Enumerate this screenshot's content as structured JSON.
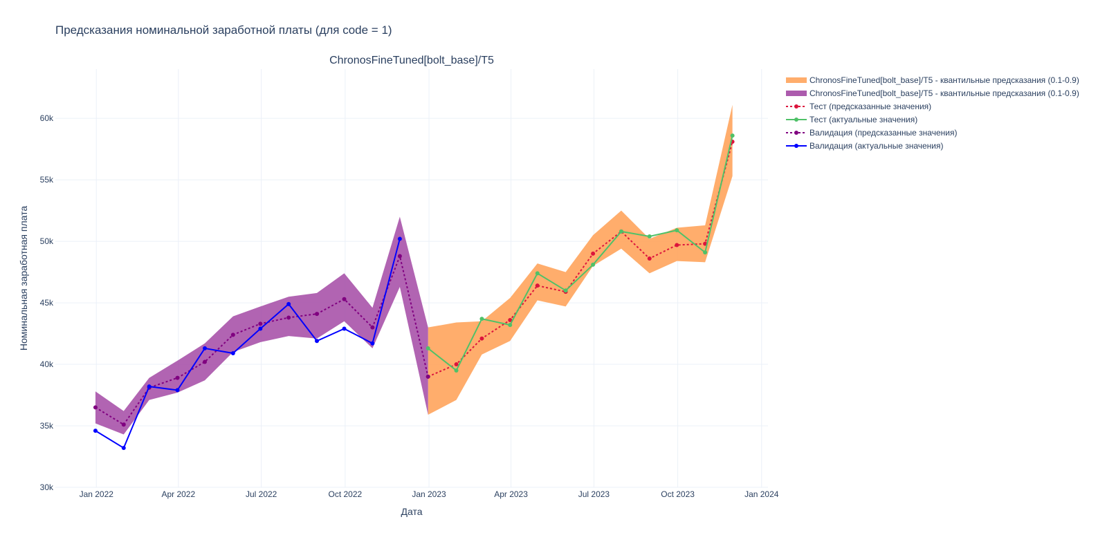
{
  "title": "Предсказания номинальной заработной платы (для code = 1)",
  "chart_data": {
    "type": "line",
    "subplot_title": "ChronosFineTuned[bolt_base]/T5",
    "xlabel": "Дата",
    "ylabel": "Номинальная заработная плата",
    "xlim": [
      "2021-11-17",
      "2024-01-08"
    ],
    "ylim": [
      30000,
      64000
    ],
    "x_ticks": [
      {
        "date": "2022-01-01",
        "label": "Jan 2022"
      },
      {
        "date": "2022-04-01",
        "label": "Apr 2022"
      },
      {
        "date": "2022-07-01",
        "label": "Jul 2022"
      },
      {
        "date": "2022-10-01",
        "label": "Oct 2022"
      },
      {
        "date": "2023-01-01",
        "label": "Jan 2023"
      },
      {
        "date": "2023-04-01",
        "label": "Apr 2023"
      },
      {
        "date": "2023-07-01",
        "label": "Jul 2023"
      },
      {
        "date": "2023-10-01",
        "label": "Oct 2023"
      },
      {
        "date": "2024-01-01",
        "label": "Jan 2024"
      }
    ],
    "y_ticks": [
      {
        "value": 30000,
        "label": "30k"
      },
      {
        "value": 35000,
        "label": "35k"
      },
      {
        "value": 40000,
        "label": "40k"
      },
      {
        "value": 45000,
        "label": "45k"
      },
      {
        "value": 50000,
        "label": "50k"
      },
      {
        "value": 55000,
        "label": "55k"
      },
      {
        "value": 60000,
        "label": "60k"
      }
    ],
    "grid": true,
    "legend_position": "right",
    "bands": [
      {
        "name": "ChronosFineTuned[bolt_base]/T5 - квантильные предсказания (0.1-0.9)",
        "color": "#ffa45c",
        "opacity": 0.9,
        "x": [
          "2022-12-31",
          "2023-01-31",
          "2023-02-28",
          "2023-03-31",
          "2023-04-30",
          "2023-05-31",
          "2023-06-30",
          "2023-07-31",
          "2023-08-31",
          "2023-09-30",
          "2023-10-31",
          "2023-11-30"
        ],
        "lower": [
          35900,
          37100,
          40800,
          41900,
          45200,
          44700,
          48000,
          49400,
          47400,
          48400,
          48300,
          55300
        ],
        "upper": [
          43000,
          43400,
          43500,
          45400,
          48200,
          47500,
          50500,
          52500,
          50200,
          51100,
          51300,
          61100
        ]
      },
      {
        "name": "ChronosFineTuned[bolt_base]/T5 - квантильные предсказания (0.1-0.9)",
        "color": "#a349a4",
        "opacity": 0.85,
        "x": [
          "2021-12-31",
          "2022-01-31",
          "2022-02-28",
          "2022-03-31",
          "2022-04-30",
          "2022-05-31",
          "2022-06-30",
          "2022-07-31",
          "2022-08-31",
          "2022-09-30",
          "2022-10-31",
          "2022-11-30",
          "2022-12-31"
        ],
        "lower": [
          35200,
          34300,
          37100,
          37700,
          38700,
          41000,
          41800,
          42300,
          42100,
          43500,
          41300,
          46300,
          35900
        ],
        "upper": [
          37800,
          36200,
          38900,
          40300,
          41700,
          43900,
          44700,
          45500,
          45800,
          47400,
          44600,
          52000,
          43000
        ]
      }
    ],
    "series": [
      {
        "name": "Тест (предсказанные значения)",
        "color": "#dc143c",
        "dash": "dot",
        "x": [
          "2022-12-31",
          "2023-01-31",
          "2023-02-28",
          "2023-03-31",
          "2023-04-30",
          "2023-05-31",
          "2023-06-30",
          "2023-07-31",
          "2023-08-31",
          "2023-09-30",
          "2023-10-31",
          "2023-11-30"
        ],
        "values": [
          39000,
          40000,
          42100,
          43600,
          46400,
          45900,
          49000,
          50800,
          48600,
          49700,
          49800,
          58100
        ]
      },
      {
        "name": "Тест (актуальные значения)",
        "color": "#4fc168",
        "dash": "solid",
        "x": [
          "2022-12-31",
          "2023-01-31",
          "2023-02-28",
          "2023-03-31",
          "2023-04-30",
          "2023-05-31",
          "2023-06-30",
          "2023-07-31",
          "2023-08-31",
          "2023-09-30",
          "2023-10-31",
          "2023-11-30"
        ],
        "values": [
          41300,
          39500,
          43700,
          43200,
          47400,
          46000,
          48100,
          50800,
          50400,
          50900,
          49100,
          58600
        ]
      },
      {
        "name": "Валидация (предсказанные значения)",
        "color": "#800080",
        "dash": "dot",
        "x": [
          "2021-12-31",
          "2022-01-31",
          "2022-02-28",
          "2022-03-31",
          "2022-04-30",
          "2022-05-31",
          "2022-06-30",
          "2022-07-31",
          "2022-08-31",
          "2022-09-30",
          "2022-10-31",
          "2022-11-30",
          "2022-12-31"
        ],
        "values": [
          36500,
          35100,
          38100,
          38900,
          40200,
          42400,
          43300,
          43800,
          44100,
          45300,
          43000,
          48800,
          39000
        ]
      },
      {
        "name": "Валидация (актуальные значения)",
        "color": "#0000ff",
        "dash": "solid",
        "x": [
          "2021-12-31",
          "2022-01-31",
          "2022-02-28",
          "2022-03-31",
          "2022-04-30",
          "2022-05-31",
          "2022-06-30",
          "2022-07-31",
          "2022-08-31",
          "2022-09-30",
          "2022-10-31",
          "2022-11-30"
        ],
        "values": [
          34600,
          33200,
          38200,
          37900,
          41300,
          40900,
          42900,
          44900,
          41900,
          42900,
          41700,
          50200
        ]
      }
    ]
  }
}
